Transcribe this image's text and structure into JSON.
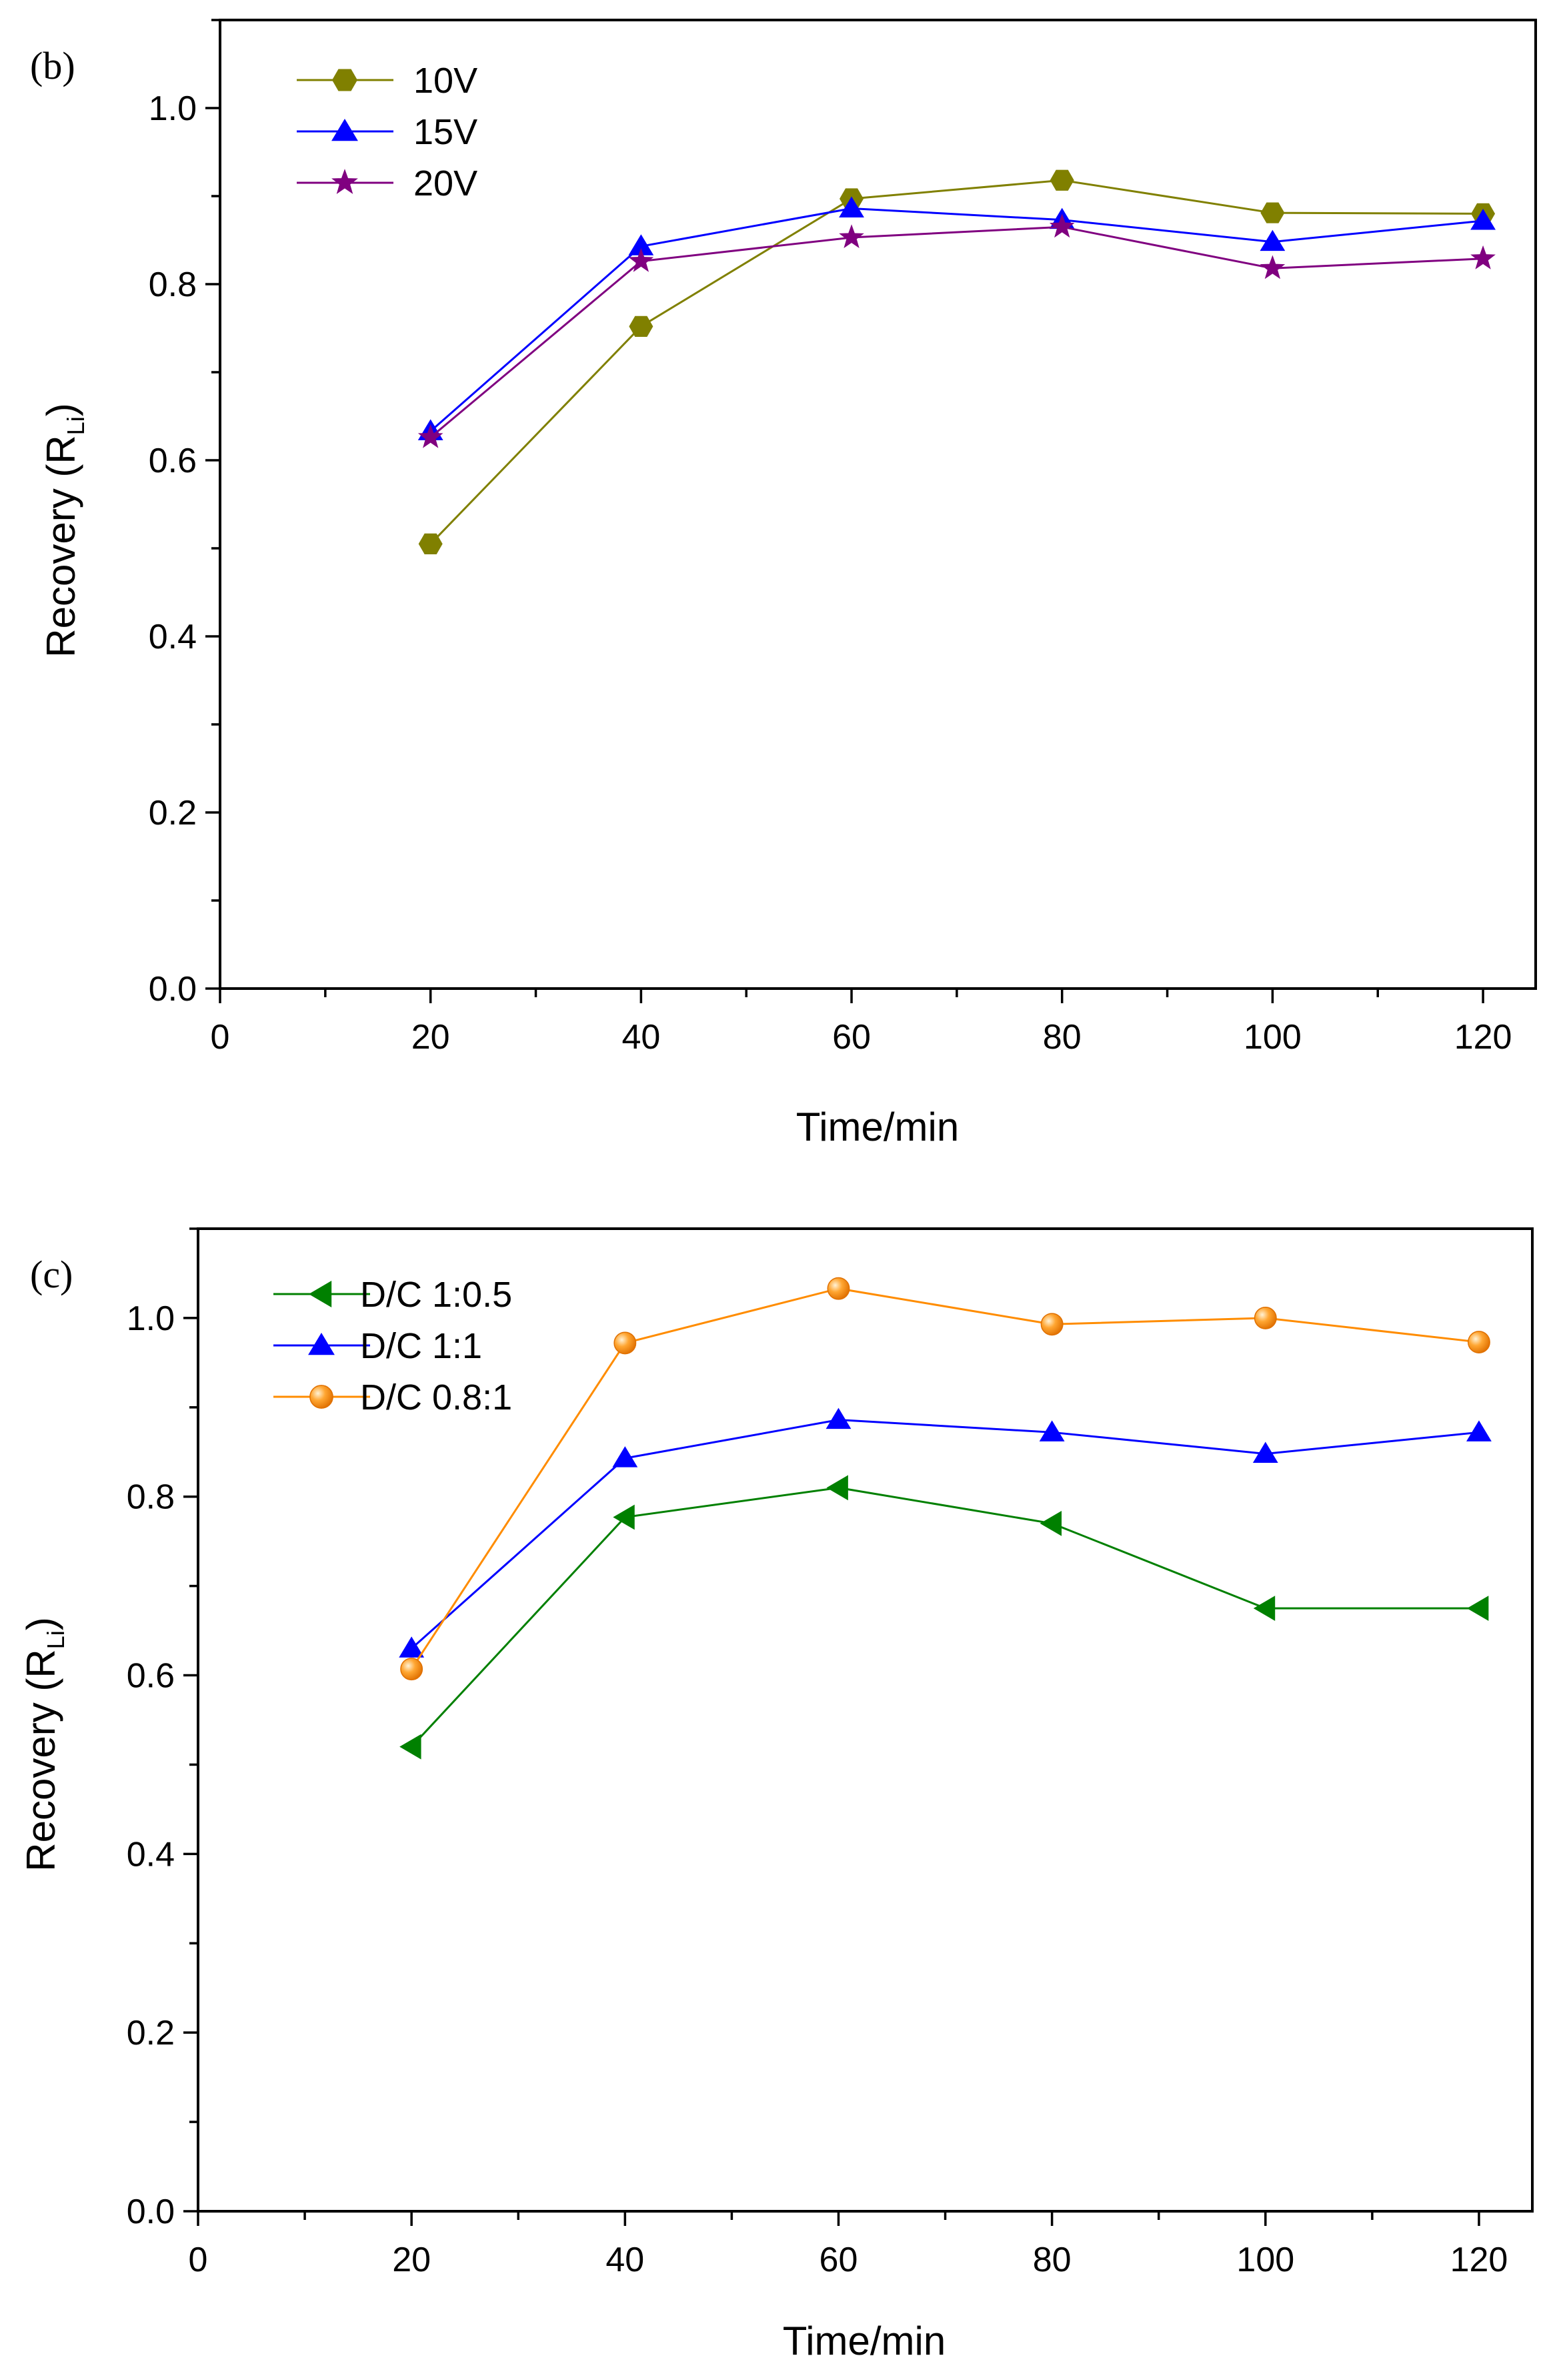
{
  "chart_data": [
    {
      "type": "line",
      "panel_label": "(b)",
      "xlabel": "Time/min",
      "ylabel": "Recovery (R",
      "ylabel_sub": "Li",
      "ylabel_close": ")",
      "xlim": [
        0,
        125
      ],
      "ylim": [
        0,
        1.1
      ],
      "xticks": [
        "0",
        "20",
        "40",
        "60",
        "80",
        "100",
        "120"
      ],
      "yticks": [
        "0.0",
        "0.2",
        "0.4",
        "0.6",
        "0.8",
        "1.0"
      ],
      "legend_position": "top-left",
      "x": [
        20,
        40,
        60,
        80,
        100,
        120
      ],
      "series": [
        {
          "name": "10V",
          "color": "#808000",
          "marker": "hexagon",
          "values": [
            0.505,
            0.752,
            0.897,
            0.918,
            0.881,
            0.88
          ]
        },
        {
          "name": "15V",
          "color": "#0000ff",
          "marker": "triangle-up",
          "values": [
            0.633,
            0.843,
            0.886,
            0.873,
            0.848,
            0.872
          ]
        },
        {
          "name": "20V",
          "color": "#800080",
          "marker": "star",
          "values": [
            0.626,
            0.826,
            0.853,
            0.865,
            0.818,
            0.829
          ]
        }
      ]
    },
    {
      "type": "line",
      "panel_label": "(c)",
      "xlabel": "Time/min",
      "ylabel": "Recovery (R",
      "ylabel_sub": "Li",
      "ylabel_close": ")",
      "xlim": [
        0,
        125
      ],
      "ylim": [
        0,
        1.1
      ],
      "xticks": [
        "0",
        "20",
        "40",
        "60",
        "80",
        "100",
        "120"
      ],
      "yticks": [
        "0.0",
        "0.2",
        "0.4",
        "0.6",
        "0.8",
        "1.0"
      ],
      "legend_position": "top-left",
      "x": [
        20,
        40,
        60,
        80,
        100,
        120
      ],
      "series": [
        {
          "name": "D/C 1:0.5",
          "color": "#008000",
          "marker": "triangle-left",
          "values": [
            0.52,
            0.777,
            0.81,
            0.77,
            0.675,
            0.675
          ]
        },
        {
          "name": "D/C 1:1",
          "color": "#0000ff",
          "marker": "triangle-up",
          "values": [
            0.63,
            0.843,
            0.886,
            0.872,
            0.848,
            0.872
          ]
        },
        {
          "name": "D/C 0.8:1",
          "color": "#ff8c00",
          "marker": "sphere",
          "values": [
            0.607,
            0.972,
            1.033,
            0.993,
            1.0,
            0.973
          ]
        }
      ]
    }
  ]
}
